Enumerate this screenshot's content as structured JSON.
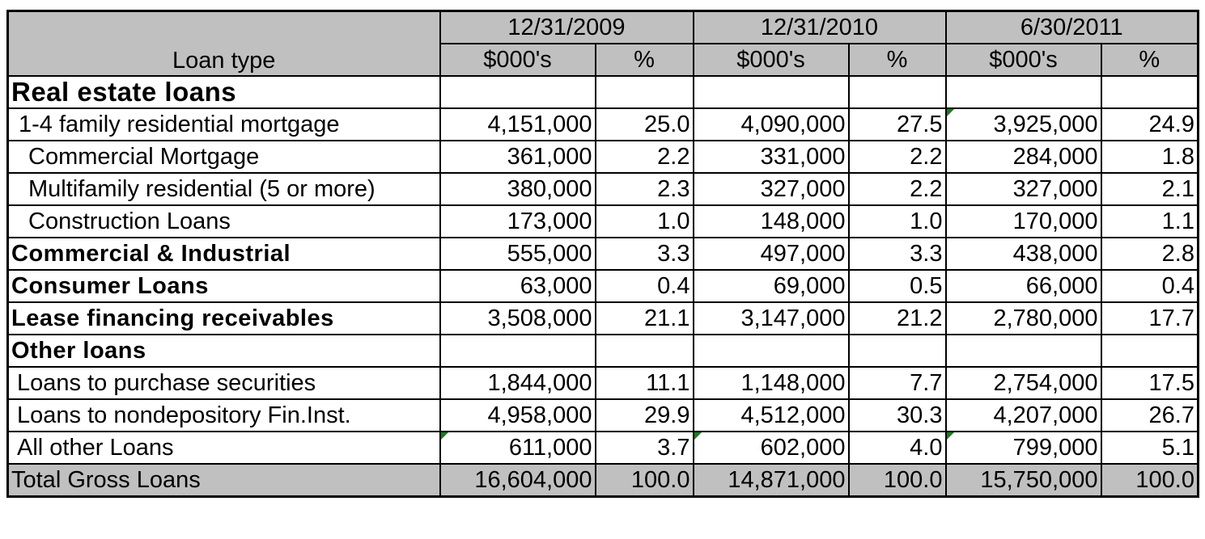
{
  "chart_data": {
    "type": "table",
    "columns": {
      "loan_type": "Loan type",
      "periods": [
        "12/31/2009",
        "12/31/2010",
        "6/30/2011"
      ],
      "subheaders": [
        "$000's",
        "%"
      ]
    },
    "rows": [
      {
        "label": "Real estate loans",
        "style": "section",
        "values": [
          "",
          "",
          "",
          "",
          "",
          ""
        ]
      },
      {
        "label": "1-4 family residential mortgage",
        "style": "item1",
        "values": [
          "4,151,000",
          "25.0",
          "4,090,000",
          "27.5",
          "3,925,000",
          "24.9"
        ]
      },
      {
        "label": "Commercial Mortgage",
        "style": "item2",
        "values": [
          "361,000",
          "2.2",
          "331,000",
          "2.2",
          "284,000",
          "1.8"
        ]
      },
      {
        "label": "Multifamily residential (5 or more)",
        "style": "item2",
        "values": [
          "380,000",
          "2.3",
          "327,000",
          "2.2",
          "327,000",
          "2.1"
        ]
      },
      {
        "label": "Construction Loans",
        "style": "item2",
        "values": [
          "173,000",
          "1.0",
          "148,000",
          "1.0",
          "170,000",
          "1.1"
        ]
      },
      {
        "label": "Commercial & Industrial",
        "style": "bold",
        "values": [
          "555,000",
          "3.3",
          "497,000",
          "3.3",
          "438,000",
          "2.8"
        ]
      },
      {
        "label": "Consumer Loans",
        "style": "bold",
        "values": [
          "63,000",
          "0.4",
          "69,000",
          "0.5",
          "66,000",
          "0.4"
        ]
      },
      {
        "label": "Lease financing receivables",
        "style": "bold",
        "values": [
          "3,508,000",
          "21.1",
          "3,147,000",
          "21.2",
          "2,780,000",
          "17.7"
        ]
      },
      {
        "label": "Other loans",
        "style": "bold",
        "values": [
          "",
          "",
          "",
          "",
          "",
          ""
        ]
      },
      {
        "label": "Loans to purchase securities",
        "style": "item3",
        "values": [
          "1,844,000",
          "11.1",
          "1,148,000",
          "7.7",
          "2,754,000",
          "17.5"
        ]
      },
      {
        "label": "Loans to nondepository Fin.Inst.",
        "style": "item3",
        "values": [
          "4,958,000",
          "29.9",
          "4,512,000",
          "30.3",
          "4,207,000",
          "26.7"
        ]
      },
      {
        "label": "All other Loans",
        "style": "item3",
        "values": [
          "611,000",
          "3.7",
          "602,000",
          "4.0",
          "799,000",
          "5.1"
        ]
      }
    ],
    "total": {
      "label": "Total Gross Loans",
      "values": [
        "16,604,000",
        "100.0",
        "14,871,000",
        "100.0",
        "15,750,000",
        "100.0"
      ]
    }
  },
  "colors": {
    "header_fill": "#c0c0c0",
    "comment_marker": "#1f7a1f"
  }
}
